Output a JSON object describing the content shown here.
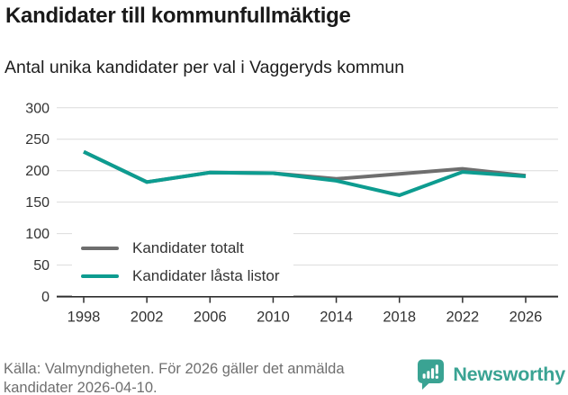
{
  "chart_data": {
    "type": "line",
    "title": "Kandidater till kommunfullmäktige",
    "subtitle": "Antal unika kandidater per val i Vaggeryds kommun",
    "x": [
      1998,
      2002,
      2006,
      2010,
      2014,
      2018,
      2022,
      2026
    ],
    "series": [
      {
        "name": "Kandidater totalt",
        "color": "#6e6e6e",
        "values": [
          230,
          182,
          197,
          196,
          187,
          195,
          203,
          192
        ]
      },
      {
        "name": "Kandidater låsta listor",
        "color": "#0d9c90",
        "values": [
          230,
          182,
          197,
          196,
          184,
          161,
          198,
          191
        ]
      }
    ],
    "xlabel": "",
    "ylabel": "",
    "ylim": [
      0,
      300
    ],
    "ytick_step": 50,
    "grid": true,
    "legend_position": "inside-bottom-left"
  },
  "colors": {
    "grid": "#dcdcdc",
    "axis": "#2e2e2e",
    "tick_label": "#333333"
  },
  "footer": {
    "source": "Källa: Valmyndigheten. För 2026 gäller det anmälda kandidater 2026-04-10.",
    "brand": "Newsworthy",
    "brand_color": "#3aa393"
  }
}
